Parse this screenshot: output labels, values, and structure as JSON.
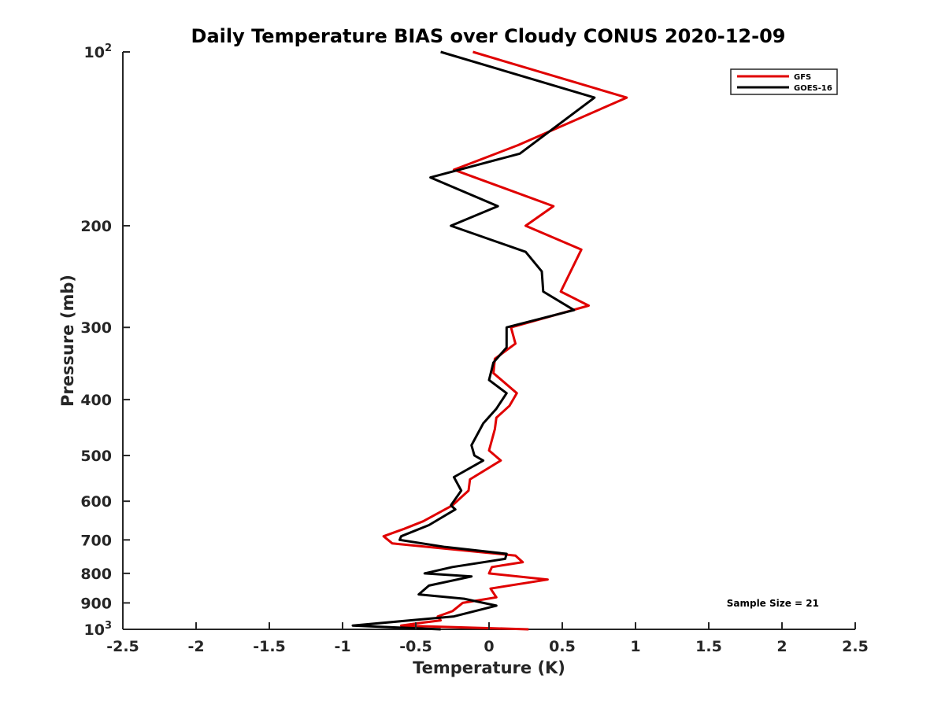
{
  "chart_data": {
    "type": "line",
    "title": "Daily Temperature BIAS over Cloudy CONUS 2020-12-09",
    "xlabel": "Temperature (K)",
    "ylabel": "Pressure (mb)",
    "xlim": [
      -2.5,
      2.5
    ],
    "ylim": [
      100,
      1000
    ],
    "yscale": "log",
    "yreversed": true,
    "grid": false,
    "legend_position": "top-right",
    "xticks": [
      {
        "value": -2.5,
        "label": "-2.5"
      },
      {
        "value": -2,
        "label": "-2"
      },
      {
        "value": -1.5,
        "label": "-1.5"
      },
      {
        "value": -1,
        "label": "-1"
      },
      {
        "value": -0.5,
        "label": "-0.5"
      },
      {
        "value": 0,
        "label": "0"
      },
      {
        "value": 0.5,
        "label": "0.5"
      },
      {
        "value": 1,
        "label": "1"
      },
      {
        "value": 1.5,
        "label": "1.5"
      },
      {
        "value": 2,
        "label": "2"
      },
      {
        "value": 2.5,
        "label": "2.5"
      }
    ],
    "yticks": [
      {
        "value": 100,
        "label": "10",
        "sup": "2"
      },
      {
        "value": 200,
        "label": "200",
        "sup": ""
      },
      {
        "value": 300,
        "label": "300",
        "sup": ""
      },
      {
        "value": 400,
        "label": "400",
        "sup": ""
      },
      {
        "value": 500,
        "label": "500",
        "sup": ""
      },
      {
        "value": 600,
        "label": "600",
        "sup": ""
      },
      {
        "value": 700,
        "label": "700",
        "sup": ""
      },
      {
        "value": 800,
        "label": "800",
        "sup": ""
      },
      {
        "value": 900,
        "label": "900",
        "sup": ""
      },
      {
        "value": 1000,
        "label": "10",
        "sup": "3"
      }
    ],
    "annotation": "Sample Size = 21",
    "series": [
      {
        "name": "GFS",
        "color": "#e00000",
        "points": [
          [
            -0.11,
            100
          ],
          [
            0.94,
            120
          ],
          [
            0.2,
            145
          ],
          [
            -0.24,
            160
          ],
          [
            0.44,
            185
          ],
          [
            0.25,
            200
          ],
          [
            0.63,
            220
          ],
          [
            0.49,
            260
          ],
          [
            0.68,
            275
          ],
          [
            0.15,
            300
          ],
          [
            0.18,
            320
          ],
          [
            0.04,
            340
          ],
          [
            0.03,
            360
          ],
          [
            0.19,
            390
          ],
          [
            0.14,
            410
          ],
          [
            0.05,
            430
          ],
          [
            0.04,
            450
          ],
          [
            0.0,
            490
          ],
          [
            0.08,
            510
          ],
          [
            -0.13,
            550
          ],
          [
            -0.14,
            575
          ],
          [
            -0.25,
            610
          ],
          [
            -0.45,
            650
          ],
          [
            -0.58,
            670
          ],
          [
            -0.72,
            690
          ],
          [
            -0.66,
            710
          ],
          [
            0.18,
            745
          ],
          [
            0.23,
            765
          ],
          [
            0.02,
            780
          ],
          [
            0.0,
            800
          ],
          [
            0.4,
            820
          ],
          [
            0.01,
            850
          ],
          [
            0.05,
            880
          ],
          [
            -0.18,
            900
          ],
          [
            -0.25,
            930
          ],
          [
            -0.35,
            950
          ],
          [
            -0.33,
            965
          ],
          [
            -0.47,
            975
          ],
          [
            -0.6,
            985
          ],
          [
            0.27,
            1000
          ]
        ]
      },
      {
        "name": "GOES-16",
        "color": "#000000",
        "points": [
          [
            -0.33,
            100
          ],
          [
            0.72,
            120
          ],
          [
            0.21,
            150
          ],
          [
            -0.4,
            165
          ],
          [
            0.06,
            185
          ],
          [
            -0.26,
            200
          ],
          [
            0.25,
            222
          ],
          [
            0.36,
            240
          ],
          [
            0.37,
            260
          ],
          [
            0.58,
            280
          ],
          [
            0.12,
            300
          ],
          [
            0.12,
            325
          ],
          [
            0.03,
            345
          ],
          [
            0.0,
            370
          ],
          [
            0.12,
            390
          ],
          [
            0.05,
            415
          ],
          [
            -0.04,
            440
          ],
          [
            -0.12,
            480
          ],
          [
            -0.1,
            500
          ],
          [
            -0.04,
            510
          ],
          [
            -0.24,
            545
          ],
          [
            -0.19,
            575
          ],
          [
            -0.26,
            610
          ],
          [
            -0.23,
            620
          ],
          [
            -0.41,
            660
          ],
          [
            -0.6,
            690
          ],
          [
            -0.61,
            700
          ],
          [
            -0.3,
            720
          ],
          [
            0.12,
            740
          ],
          [
            0.11,
            755
          ],
          [
            -0.25,
            780
          ],
          [
            -0.44,
            800
          ],
          [
            -0.12,
            810
          ],
          [
            -0.41,
            840
          ],
          [
            -0.48,
            870
          ],
          [
            -0.17,
            885
          ],
          [
            0.05,
            910
          ],
          [
            -0.24,
            950
          ],
          [
            -0.93,
            985
          ],
          [
            -0.33,
            1000
          ]
        ]
      }
    ]
  }
}
